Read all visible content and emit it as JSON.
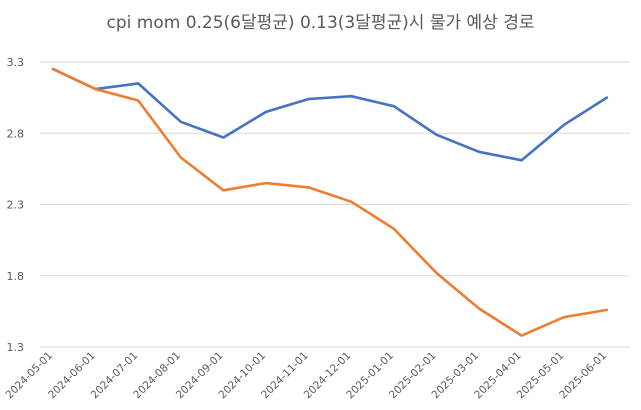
{
  "chart_data": {
    "type": "line",
    "title": "cpi mom 0.25(6달평균) 0.13(3달평균)시 물가 예상 경로",
    "xlabel": "",
    "ylabel": "",
    "ylim": [
      1.3,
      3.3
    ],
    "yticks": [
      "3.3",
      "2.8",
      "2.3",
      "1.8",
      "1.3"
    ],
    "grid": true,
    "legend": "none",
    "x": [
      "2024-05-01",
      "2024-06-01",
      "2024-07-01",
      "2024-08-01",
      "2024-09-01",
      "2024-10-01",
      "2024-11-01",
      "2024-12-01",
      "2025-01-01",
      "2025-02-01",
      "2025-03-01",
      "2025-04-01",
      "2025-05-01",
      "2025-06-01"
    ],
    "series": [
      {
        "color": "#4472C4",
        "values": [
          3.25,
          3.11,
          3.15,
          2.88,
          2.77,
          2.95,
          3.04,
          3.06,
          2.99,
          2.79,
          2.67,
          2.61,
          2.86,
          3.05
        ]
      },
      {
        "color": "#ED7D31",
        "values": [
          3.25,
          3.11,
          3.03,
          2.63,
          2.4,
          2.45,
          2.42,
          2.32,
          2.13,
          1.82,
          1.57,
          1.38,
          1.51,
          1.56
        ]
      }
    ]
  }
}
